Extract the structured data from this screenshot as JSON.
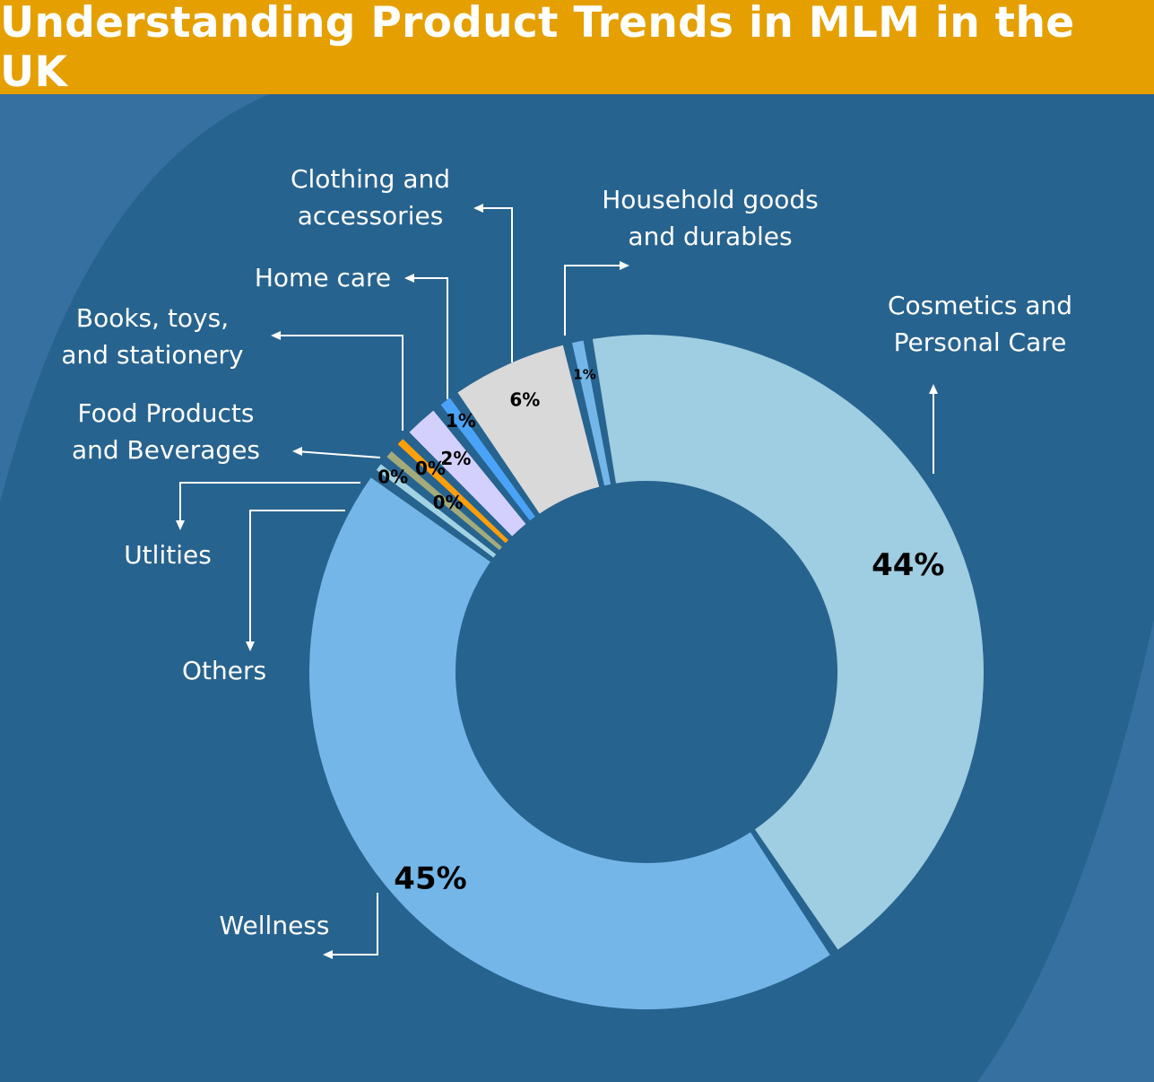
{
  "title": "Understanding Product Trends in MLM in the UK",
  "colors": {
    "background": "#27638f",
    "background_blob": "#3670a0",
    "header": "#e5a000",
    "label_text": "#ffffff",
    "value_text": "#000000"
  },
  "chart_data": {
    "type": "pie",
    "variant": "donut",
    "title": "Understanding Product Trends in MLM in the UK",
    "legend": "none (callout labels)",
    "slices": [
      {
        "name": "Cosmetics and Personal Care",
        "value": 44,
        "label": "44%",
        "color": "#9fcde1"
      },
      {
        "name": "Wellness",
        "value": 45,
        "label": "45%",
        "color": "#74b6e8"
      },
      {
        "name": "Others",
        "value": 0,
        "label": "0%",
        "color": "#a2d3e2"
      },
      {
        "name": "Utlities",
        "value": 0,
        "label": "0%",
        "color": "#a3ab7b"
      },
      {
        "name": "Food Products and Beverages",
        "value": 0,
        "label": "0%",
        "color": "#ff9f0a"
      },
      {
        "name": "Books, toys, and stationery",
        "value": 2,
        "label": "2%",
        "color": "#d4d0fd"
      },
      {
        "name": "Home care",
        "value": 1,
        "label": "1%",
        "color": "#4aa3f6"
      },
      {
        "name": "Clothing and accessories",
        "value": 6,
        "label": "6%",
        "color": "#d9d9d9"
      },
      {
        "name": "Household goods and durables",
        "value": 1,
        "label": "1%",
        "color": "#74b6e8"
      }
    ]
  },
  "labels": {
    "cosmetics": [
      "Cosmetics and",
      "Personal Care"
    ],
    "wellness": [
      "Wellness"
    ],
    "others": [
      "Others"
    ],
    "utilities": [
      "Utlities"
    ],
    "food": [
      "Food Products",
      "and Beverages"
    ],
    "books": [
      "Books, toys,",
      "and stationery"
    ],
    "homecare": [
      "Home care"
    ],
    "clothing": [
      "Clothing and",
      "accessories"
    ],
    "household": [
      "Household goods",
      "and durables"
    ]
  }
}
